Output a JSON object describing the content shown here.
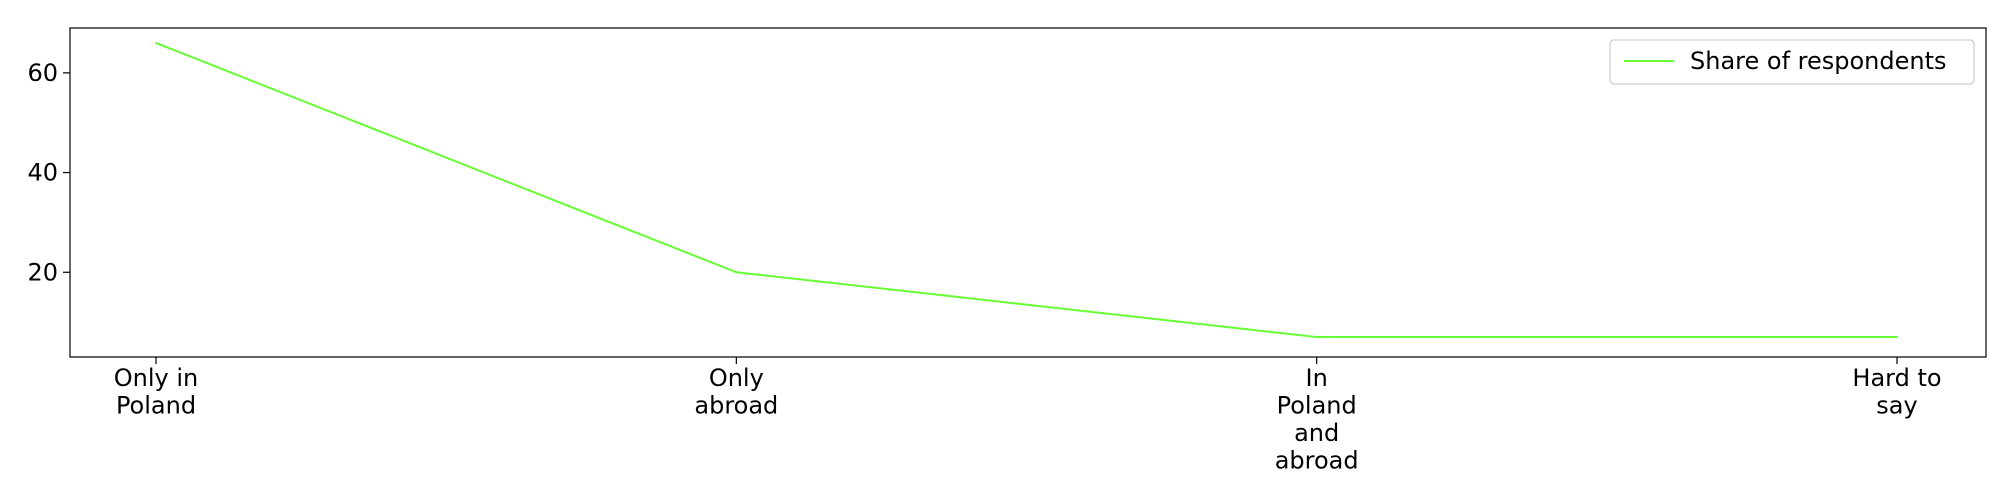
{
  "chart_data": {
    "type": "line",
    "categories": [
      [
        "Only in",
        "Poland"
      ],
      [
        "Only",
        "abroad"
      ],
      [
        "In",
        "Poland",
        "and",
        "abroad"
      ],
      [
        "Hard to",
        "say"
      ]
    ],
    "series": [
      {
        "name": "Share of respondents",
        "values": [
          66,
          20,
          7,
          7
        ],
        "color": "#66ff33"
      }
    ],
    "y_ticks": [
      20,
      40,
      60
    ],
    "ylim": [
      3,
      69
    ],
    "xlabel": "",
    "ylabel": "",
    "title": "",
    "grid": false,
    "legend_position": "top-right"
  }
}
